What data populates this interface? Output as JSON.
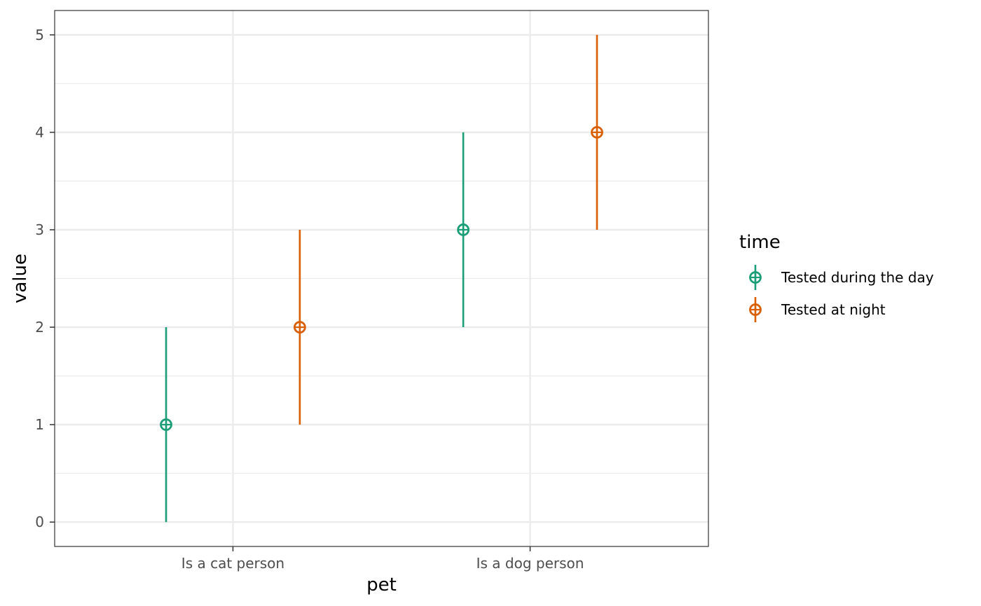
{
  "chart_data": {
    "type": "scatter",
    "subtype": "pointrange",
    "xlabel": "pet",
    "ylabel": "value",
    "categories": [
      "Is a cat person",
      "Is a dog person"
    ],
    "ylim": [
      -0.25,
      5.25
    ],
    "yticks": [
      0,
      1,
      2,
      3,
      4,
      5
    ],
    "grid": true,
    "legend": {
      "title": "time",
      "position": "right"
    },
    "series": [
      {
        "name": "Tested during the day",
        "color": "#1b9e77",
        "points": [
          {
            "category": "Is a cat person",
            "value": 1,
            "lower": 0,
            "upper": 2
          },
          {
            "category": "Is a dog person",
            "value": 3,
            "lower": 2,
            "upper": 4
          }
        ]
      },
      {
        "name": "Tested at night",
        "color": "#d95f02",
        "points": [
          {
            "category": "Is a cat person",
            "value": 2,
            "lower": 1,
            "upper": 3
          },
          {
            "category": "Is a dog person",
            "value": 4,
            "lower": 3,
            "upper": 5
          }
        ]
      }
    ]
  }
}
